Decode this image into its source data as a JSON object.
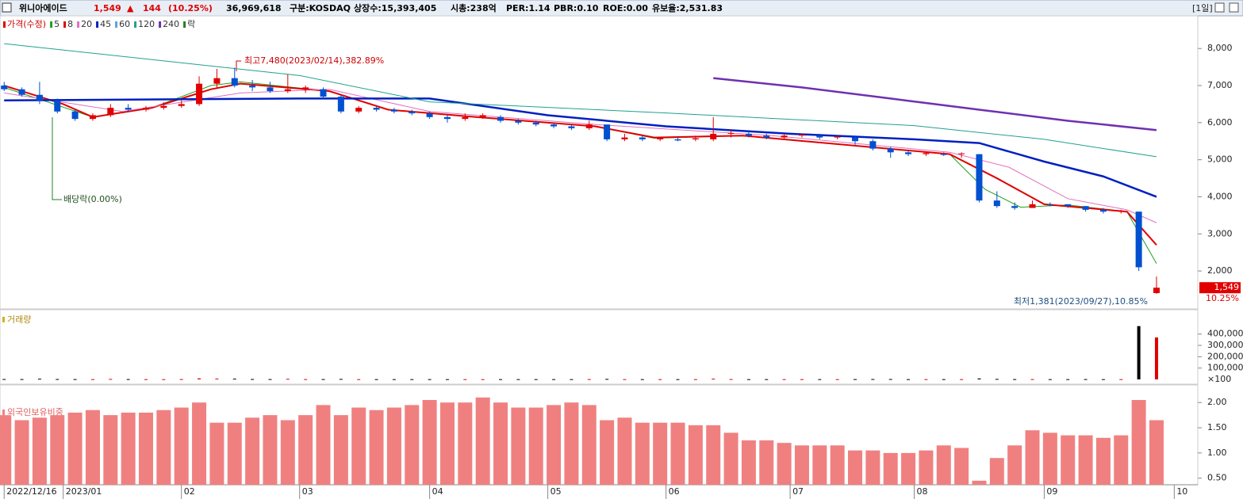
{
  "header": {
    "items": [
      "위니아에이드",
      "1,549",
      "▲",
      "144",
      "(10.25%)",
      "36,969,618",
      "구분:KOSDAQ",
      "상장수:15,393,405",
      "시총:238억",
      "PER:1.14",
      "PBR:0.10",
      "ROE:0.00",
      "유보율:2,531.83"
    ],
    "period": "[1일]"
  },
  "chart_data": {
    "type": "candlestick",
    "legend": [
      {
        "label": "가격(수정)",
        "color": "#e00000"
      },
      {
        "label": "5",
        "color": "#20a020"
      },
      {
        "label": "8",
        "color": "#e00000"
      },
      {
        "label": "20",
        "color": "#e070c0"
      },
      {
        "label": "45",
        "color": "#0020c0"
      },
      {
        "label": "60",
        "color": "#60a0e0"
      },
      {
        "label": "120",
        "color": "#20a090"
      },
      {
        "label": "240",
        "color": "#7030b0"
      },
      {
        "label": "락",
        "color": "#208020"
      }
    ],
    "up_color": "#e00000",
    "down_color": "#0050d0",
    "x": [
      0,
      3,
      6,
      9,
      12,
      15,
      18,
      21,
      24,
      27,
      30,
      33,
      36,
      39,
      42,
      45,
      48,
      51,
      54,
      57,
      60,
      63,
      66,
      69,
      72,
      75,
      78,
      81,
      84,
      87,
      90,
      93,
      96,
      99,
      102,
      105,
      108,
      111,
      114,
      117,
      120,
      123,
      126,
      129,
      132,
      135,
      138,
      141,
      144,
      147,
      150,
      153,
      156,
      159,
      162,
      165,
      168,
      171,
      174,
      177,
      180,
      183,
      186,
      189,
      192,
      195
    ],
    "candles": [
      [
        7000,
        7100,
        6850,
        6900
      ],
      [
        6900,
        6950,
        6700,
        6750
      ],
      [
        6750,
        7100,
        6500,
        6600
      ],
      [
        6600,
        6650,
        6250,
        6300
      ],
      [
        6300,
        6350,
        6050,
        6100
      ],
      [
        6100,
        6250,
        6050,
        6200
      ],
      [
        6200,
        6500,
        6150,
        6400
      ],
      [
        6400,
        6500,
        6300,
        6350
      ],
      [
        6350,
        6450,
        6300,
        6400
      ],
      [
        6400,
        6550,
        6350,
        6450
      ],
      [
        6450,
        6600,
        6400,
        6500
      ],
      [
        6500,
        7250,
        6450,
        7050
      ],
      [
        7050,
        7450,
        6950,
        7200
      ],
      [
        7200,
        7480,
        6950,
        7000
      ],
      [
        7000,
        7150,
        6850,
        6950
      ],
      [
        6950,
        7100,
        6800,
        6850
      ],
      [
        6850,
        7300,
        6800,
        6900
      ],
      [
        6900,
        7000,
        6800,
        6950
      ],
      [
        6900,
        6950,
        6650,
        6700
      ],
      [
        6700,
        6750,
        6250,
        6300
      ],
      [
        6300,
        6450,
        6250,
        6400
      ],
      [
        6400,
        6450,
        6300,
        6350
      ],
      [
        6350,
        6400,
        6250,
        6300
      ],
      [
        6300,
        6350,
        6200,
        6250
      ],
      [
        6250,
        6300,
        6100,
        6150
      ],
      [
        6150,
        6200,
        6000,
        6100
      ],
      [
        6100,
        6250,
        6050,
        6150
      ],
      [
        6150,
        6250,
        6100,
        6200
      ],
      [
        6150,
        6200,
        6000,
        6050
      ],
      [
        6050,
        6100,
        5950,
        6000
      ],
      [
        6000,
        6050,
        5900,
        5950
      ],
      [
        5950,
        6000,
        5850,
        5900
      ],
      [
        5900,
        5950,
        5800,
        5850
      ],
      [
        5850,
        6050,
        5800,
        5950
      ],
      [
        5950,
        5950,
        5500,
        5550
      ],
      [
        5550,
        5700,
        5500,
        5600
      ],
      [
        5600,
        5650,
        5500,
        5550
      ],
      [
        5550,
        5600,
        5500,
        5580
      ],
      [
        5550,
        5600,
        5500,
        5520
      ],
      [
        5550,
        5650,
        5500,
        5580
      ],
      [
        5550,
        6150,
        5500,
        5700
      ],
      [
        5700,
        5800,
        5600,
        5720
      ],
      [
        5700,
        5750,
        5600,
        5650
      ],
      [
        5650,
        5700,
        5550,
        5600
      ],
      [
        5600,
        5700,
        5550,
        5650
      ],
      [
        5650,
        5700,
        5600,
        5680
      ],
      [
        5650,
        5700,
        5550,
        5600
      ],
      [
        5600,
        5650,
        5550,
        5620
      ],
      [
        5600,
        5650,
        5400,
        5500
      ],
      [
        5500,
        5550,
        5250,
        5300
      ],
      [
        5300,
        5350,
        5050,
        5200
      ],
      [
        5200,
        5250,
        5100,
        5150
      ],
      [
        5150,
        5200,
        5100,
        5180
      ],
      [
        5150,
        5200,
        5100,
        5130
      ],
      [
        5150,
        5200,
        5050,
        5170
      ],
      [
        5150,
        5150,
        3850,
        3900
      ],
      [
        3900,
        4150,
        3700,
        3750
      ],
      [
        3750,
        3850,
        3650,
        3700
      ],
      [
        3700,
        3900,
        3700,
        3800
      ],
      [
        3800,
        3850,
        3750,
        3780
      ],
      [
        3800,
        3800,
        3700,
        3750
      ],
      [
        3750,
        3750,
        3600,
        3650
      ],
      [
        3650,
        3700,
        3550,
        3600
      ],
      [
        3600,
        3650,
        3550,
        3620
      ],
      [
        3600,
        3600,
        2000,
        2100
      ],
      [
        1405,
        1850,
        1381,
        1549
      ]
    ],
    "ma": [
      {
        "color": "#20a020",
        "width": 1,
        "x": [
          0,
          15,
          25,
          35,
          40,
          55,
          65,
          80,
          100,
          110,
          125,
          160,
          166,
          172,
          180,
          190,
          195
        ],
        "values": [
          6950,
          6150,
          6400,
          7000,
          7100,
          6850,
          6350,
          6150,
          5900,
          5580,
          5650,
          5150,
          4200,
          3720,
          3780,
          3600,
          2200
        ]
      },
      {
        "color": "#e00000",
        "width": 2,
        "x": [
          0,
          10,
          15,
          25,
          35,
          40,
          55,
          65,
          80,
          100,
          110,
          125,
          160,
          168,
          176,
          190,
          195
        ],
        "values": [
          7000,
          6500,
          6150,
          6400,
          6900,
          7050,
          6850,
          6350,
          6150,
          5900,
          5600,
          5650,
          5150,
          4500,
          3800,
          3600,
          2700
        ]
      },
      {
        "color": "#e070c0",
        "width": 1,
        "x": [
          0,
          20,
          40,
          55,
          72,
          100,
          130,
          160,
          170,
          180,
          190,
          195
        ],
        "values": [
          6800,
          6300,
          6800,
          6900,
          6300,
          5950,
          5650,
          5200,
          4800,
          3950,
          3650,
          3300
        ]
      },
      {
        "color": "#0020c0",
        "width": 2.5,
        "x": [
          0,
          50,
          72,
          92,
          112,
          133,
          154,
          165,
          176,
          186,
          195
        ],
        "values": [
          6600,
          6650,
          6650,
          6200,
          5900,
          5700,
          5550,
          5450,
          4950,
          4550,
          4000
        ]
      },
      {
        "color": "#20a090",
        "width": 1,
        "x": [
          0,
          50,
          72,
          112,
          154,
          176,
          195
        ],
        "values": [
          8130,
          7270,
          6560,
          6260,
          5920,
          5550,
          5080
        ]
      },
      {
        "color": "#7030b0",
        "width": 2.5,
        "x": [
          120,
          135,
          150,
          165,
          180,
          195
        ],
        "values": [
          7200,
          6950,
          6650,
          6350,
          6050,
          5800
        ]
      }
    ],
    "xlim": [
      -0.7,
      199.3
    ],
    "xticks": [
      {
        "value": 0,
        "label": "2022/12/16"
      },
      {
        "value": 10,
        "label": "2023/01"
      },
      {
        "value": 30,
        "label": "02"
      },
      {
        "value": 50,
        "label": "03"
      },
      {
        "value": 72,
        "label": "04"
      },
      {
        "value": 92,
        "label": "05"
      },
      {
        "value": 112,
        "label": "06"
      },
      {
        "value": 133,
        "label": "07"
      },
      {
        "value": 154,
        "label": "08"
      },
      {
        "value": 176,
        "label": "09"
      },
      {
        "value": 198,
        "label": "10"
      }
    ],
    "ylim": [
      1020,
      8880
    ],
    "yticks": [
      {
        "value": 2000,
        "label": "2,000"
      },
      {
        "value": 3000,
        "label": "3,000"
      },
      {
        "value": 4000,
        "label": "4,000"
      },
      {
        "value": 5000,
        "label": "5,000"
      },
      {
        "value": 6000,
        "label": "6,000"
      },
      {
        "value": 7000,
        "label": "7,000"
      },
      {
        "value": 8000,
        "label": "8,000"
      }
    ],
    "last": {
      "value": 1549,
      "label": "1,549",
      "change": "10.25%"
    },
    "annotations": {
      "high": "최고7,480(2023/02/14),382.89%",
      "dividend": "배당락(0.00%)",
      "low": "최저1,381(2023/09/27),10.85%"
    },
    "volume": {
      "title": "거래량",
      "unit": "×100",
      "color": "#d4b020",
      "ylim": [
        -28000,
        517000
      ],
      "yticks": [
        {
          "value": 100000,
          "label": "100,000"
        },
        {
          "value": 200000,
          "label": "200,000"
        },
        {
          "value": 300000,
          "label": "300,000"
        },
        {
          "value": 400000,
          "label": "400,000"
        }
      ],
      "up_color": "#e00000",
      "down_color": "#000000",
      "values": [
        3000,
        2500,
        6000,
        3000,
        2500,
        2000,
        4000,
        2500,
        2000,
        2000,
        2500,
        9000,
        7000,
        6000,
        3000,
        2500,
        5000,
        2500,
        2500,
        4000,
        2000,
        2000,
        2000,
        2000,
        2000,
        2000,
        2000,
        2000,
        2000,
        2000,
        2000,
        2000,
        2000,
        2500,
        4000,
        2000,
        2000,
        2000,
        2000,
        2000,
        6000,
        2500,
        2000,
        2000,
        2000,
        2000,
        2000,
        2000,
        2500,
        3000,
        3000,
        2000,
        2000,
        2000,
        2000,
        8000,
        4000,
        2500,
        2500,
        2000,
        2000,
        2500,
        2000,
        2000,
        470000,
        370000
      ]
    },
    "foreign": {
      "title": "외국인보유비중",
      "color": "#f08080",
      "ylim": [
        0.37,
        2.16
      ],
      "yticks": [
        {
          "value": 0.5,
          "label": "0.50"
        },
        {
          "value": 1,
          "label": "1.00"
        },
        {
          "value": 1.5,
          "label": "1.50"
        },
        {
          "value": 2,
          "label": "2.00"
        }
      ],
      "values": [
        1.75,
        1.65,
        1.7,
        1.75,
        1.8,
        1.85,
        1.75,
        1.8,
        1.8,
        1.85,
        1.9,
        2.0,
        1.6,
        1.6,
        1.7,
        1.75,
        1.65,
        1.75,
        1.95,
        1.75,
        1.9,
        1.85,
        1.9,
        1.95,
        2.05,
        2.0,
        2.0,
        2.1,
        2.0,
        1.9,
        1.9,
        1.95,
        2.0,
        1.95,
        1.65,
        1.7,
        1.6,
        1.6,
        1.6,
        1.55,
        1.55,
        1.4,
        1.25,
        1.25,
        1.2,
        1.15,
        1.15,
        1.15,
        1.05,
        1.05,
        1.0,
        1.0,
        1.05,
        1.15,
        1.1,
        0.45,
        0.9,
        1.15,
        1.45,
        1.4,
        1.35,
        1.35,
        1.3,
        1.35,
        2.05,
        1.65
      ]
    }
  }
}
